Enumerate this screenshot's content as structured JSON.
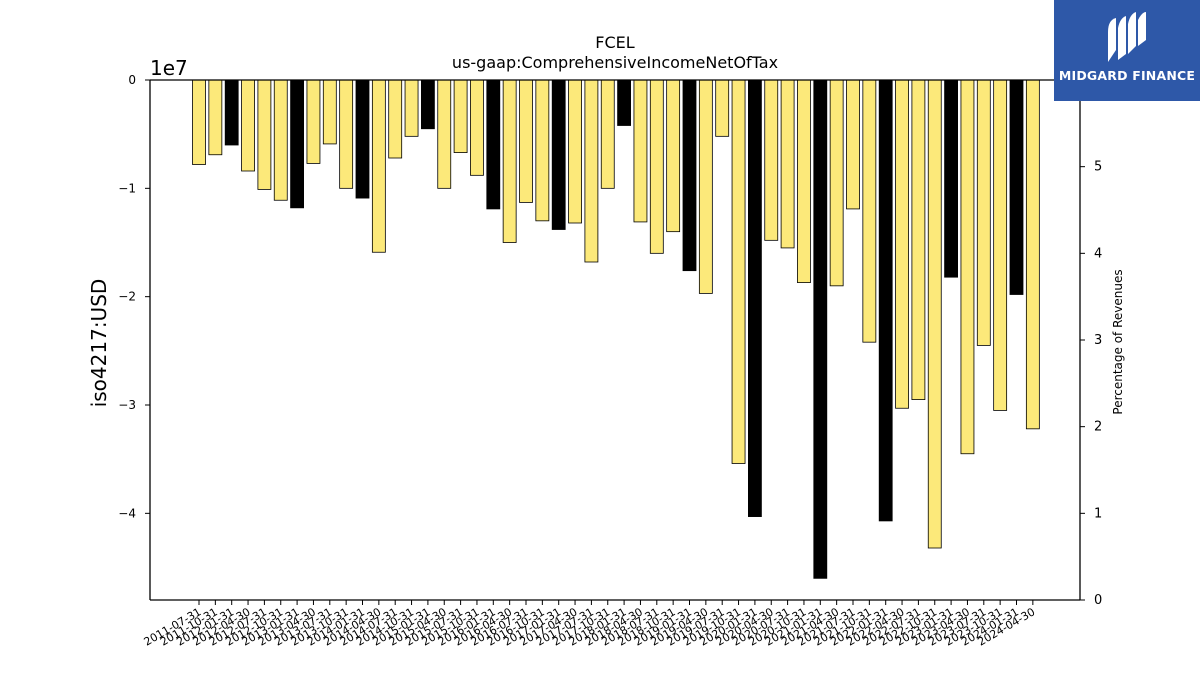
{
  "chart_data": {
    "type": "bar",
    "title": "FCEL",
    "subtitle": "us-gaap:ComprehensiveIncomeNetOfTax",
    "ylabel": "iso4217:USD",
    "y2label": "Percentage of Revenues",
    "offset_text": "1e7",
    "ylim": [
      -48000000,
      0
    ],
    "y2lim": [
      0,
      6
    ],
    "y_ticks": [
      {
        "value": 0,
        "label": "0"
      },
      {
        "value": -10000000,
        "label": "−1"
      },
      {
        "value": -20000000,
        "label": "−2"
      },
      {
        "value": -30000000,
        "label": "−3"
      },
      {
        "value": -40000000,
        "label": "−4"
      }
    ],
    "y2_ticks": [
      {
        "value": 0,
        "label": "0"
      },
      {
        "value": 1,
        "label": "1"
      },
      {
        "value": 2,
        "label": "2"
      },
      {
        "value": 3,
        "label": "3"
      },
      {
        "value": 4,
        "label": "4"
      },
      {
        "value": 5,
        "label": "5"
      }
    ],
    "grid": false,
    "colors": {
      "quarter": "#fce97a",
      "annual": "#000000",
      "edge": "#000000"
    },
    "categories": [
      "2011-07-31",
      "2011-10-31",
      "2012-01-31",
      "2012-04-30",
      "2012-07-31",
      "2012-10-31",
      "2013-01-31",
      "2013-04-30",
      "2013-07-31",
      "2013-10-31",
      "2014-01-31",
      "2014-04-30",
      "2014-07-31",
      "2014-10-31",
      "2015-01-31",
      "2015-04-30",
      "2015-07-31",
      "2015-10-31",
      "2016-01-31",
      "2016-04-30",
      "2016-07-31",
      "2016-10-31",
      "2017-01-31",
      "2017-04-30",
      "2017-07-31",
      "2017-10-31",
      "2018-01-31",
      "2018-04-30",
      "2018-07-31",
      "2018-10-31",
      "2019-01-31",
      "2019-04-30",
      "2019-07-31",
      "2019-10-31",
      "2020-01-31",
      "2020-04-30",
      "2020-07-31",
      "2020-10-31",
      "2021-01-31",
      "2021-04-30",
      "2021-07-31",
      "2021-10-31",
      "2022-01-31",
      "2022-04-30",
      "2022-07-31",
      "2022-10-31",
      "2023-01-31",
      "2023-04-30",
      "2023-07-31",
      "2023-10-31",
      "2024-01-31",
      "2024-04-30"
    ],
    "series": [
      {
        "values": [
          -7800000,
          -6900000,
          -6000000,
          -8400000,
          -10100000,
          -11100000,
          -11800000,
          -7700000,
          -5900000,
          -10000000,
          -10900000,
          -15900000,
          -7200000,
          -5200000,
          -4500000,
          -10000000,
          -6700000,
          -8800000,
          -11900000,
          -15000000,
          -11300000,
          -13000000,
          -13800000,
          -13200000,
          -16800000,
          -10000000,
          -4200000,
          -13100000,
          -16000000,
          -14000000,
          -17600000,
          -19700000,
          -5200000,
          -35400000,
          -40300000,
          -14800000,
          -15500000,
          -18700000,
          -46000000,
          -19000000,
          -11900000,
          -24200000,
          -40700000,
          -30300000,
          -29500000,
          -43200000,
          -18200000,
          -34500000,
          -24500000,
          -30500000,
          -19800000,
          -32200000
        ],
        "kinds": [
          "q",
          "q",
          "a",
          "q",
          "q",
          "q",
          "a",
          "q",
          "q",
          "q",
          "a",
          "q",
          "q",
          "q",
          "a",
          "q",
          "q",
          "q",
          "a",
          "q",
          "q",
          "q",
          "a",
          "q",
          "q",
          "q",
          "a",
          "q",
          "q",
          "q",
          "a",
          "q",
          "q",
          "q",
          "a",
          "q",
          "q",
          "q",
          "a",
          "q",
          "q",
          "q",
          "a",
          "q",
          "q",
          "q",
          "a",
          "q",
          "q",
          "q",
          "a",
          "q"
        ]
      }
    ]
  },
  "logo": {
    "text": "MIDGARD FINANCE"
  }
}
